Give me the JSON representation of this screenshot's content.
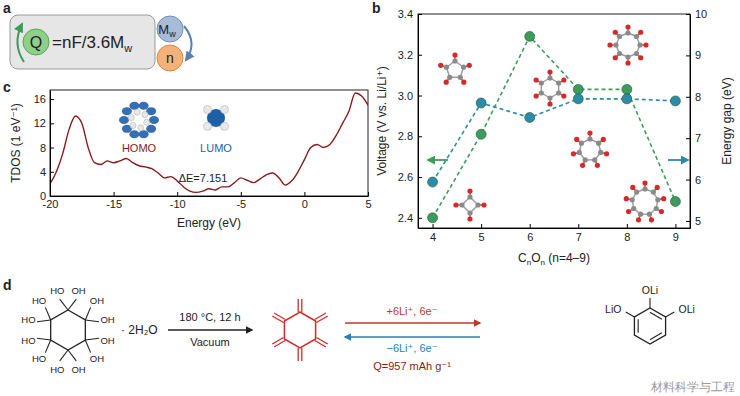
{
  "panels": {
    "a": {
      "label": "a",
      "formula": {
        "lhs": "Q",
        "rhs": "=nF/3.6M",
        "rhs_sub": "w"
      },
      "circles": {
        "mass": "M",
        "mass_sub": "w",
        "electrons": "n"
      }
    },
    "d": {
      "label": "d",
      "reactant": {
        "substituents": [
          "HO",
          "OH",
          "OH",
          "OH",
          "OH",
          "OH",
          "OH",
          "HO",
          "HO",
          "HO",
          "HO",
          "HO"
        ],
        "hydrate": "· 2H₂O"
      },
      "conditions": {
        "above": "180 °C, 12 h",
        "below": "Vacuum"
      },
      "reaction": {
        "forward": "+6Li⁺, 6e⁻",
        "reverse": "−6Li⁺, 6e⁻",
        "capacity": "Q=957 mAh g⁻¹"
      },
      "product": {
        "substituents": [
          "OLi",
          "OLi",
          "LiO"
        ]
      }
    }
  },
  "watermark": "材料科学与工程",
  "chart_data": [
    {
      "label": "b",
      "type": "line",
      "x": [
        4,
        5,
        6,
        7,
        8,
        9
      ],
      "xlim": [
        3.7,
        9.3
      ],
      "xticks": [
        4,
        5,
        6,
        7,
        8,
        9
      ],
      "xlabel": [
        "C",
        "n",
        "O",
        "n",
        " (n=4–9)"
      ],
      "ylabel": "Voltage (V vs. Li/Li⁺)",
      "ylim": [
        2.35,
        3.4
      ],
      "yticks": [
        2.4,
        2.6,
        2.8,
        {
          "value": 3,
          "label": "3.0"
        },
        3.2,
        3.4
      ],
      "y2label": "Energy gap (eV)",
      "y2lim": [
        4.83,
        10
      ],
      "y2ticks": [
        5,
        6,
        7,
        8,
        9,
        10
      ],
      "series": [
        {
          "color": "#3d9b5c",
          "values": [
            2.4,
            2.81,
            3.29,
            3.03,
            3.03,
            2.48
          ],
          "marker": "circle",
          "line_style": "dashed"
        },
        {
          "color": "#2e8ba6",
          "values": [
            5.94,
            7.85,
            7.5,
            7.95,
            7.95,
            7.9
          ],
          "axis": "y2",
          "marker": "circle",
          "line_style": "dashed"
        }
      ]
    },
    {
      "label": "c",
      "type": "line",
      "color": "#8b1a1a",
      "x": [
        -20,
        -19.5,
        -19,
        -18.5,
        -18,
        -17.5,
        -17,
        -16.5,
        -16,
        -15.5,
        -15,
        -14.5,
        -14,
        -13.5,
        -13,
        -12.5,
        -12,
        -11.5,
        -11,
        -10.5,
        -10,
        -9.5,
        -9,
        -8.5,
        -8,
        -7.5,
        -7,
        -6.5,
        -6,
        -5.5,
        -5,
        -4.5,
        -4,
        -3.5,
        -3,
        -2.5,
        -2,
        -1.5,
        -1,
        -0.5,
        0,
        0.5,
        1,
        1.5,
        2,
        2.5,
        3,
        3.5,
        4,
        4.5,
        5
      ],
      "values": [
        2,
        4,
        7,
        11,
        13.2,
        12,
        8,
        5.5,
        5.2,
        5.8,
        5.5,
        5.8,
        6.2,
        5.5,
        5,
        4.8,
        4.5,
        3.8,
        3,
        3.2,
        2.5,
        1.5,
        0.8,
        0.6,
        0.8,
        1.2,
        1,
        1.5,
        1.5,
        2.2,
        3,
        2.6,
        2.2,
        2.8,
        3.5,
        3.8,
        3,
        1.8,
        2.5,
        4,
        6,
        8,
        8.5,
        8,
        8.5,
        10,
        12,
        14,
        17,
        16.5,
        15
      ],
      "xlim": [
        -20,
        5
      ],
      "xticks": [
        -20,
        -15,
        -10,
        -5,
        0,
        5
      ],
      "ylim": [
        0,
        17.5
      ],
      "yticks": [
        0,
        4,
        8,
        12,
        16
      ],
      "xlabel": "Energy (eV)",
      "ylabel": "TDOS (1 eV⁻¹)",
      "annotations": [
        "HOMO",
        "LUMO",
        "ΔE=7.151"
      ]
    }
  ]
}
